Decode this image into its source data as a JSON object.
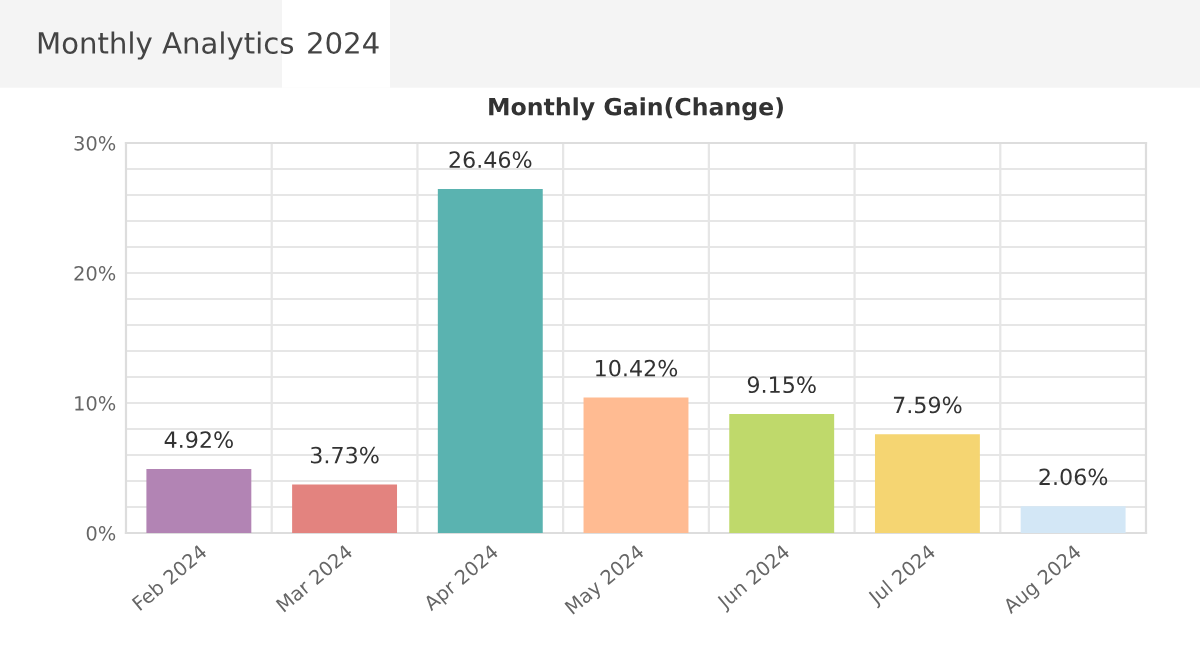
{
  "chart_data": {
    "type": "bar",
    "title": "Monthly Gain(Change)",
    "annotations": [
      "Monthly Analytics",
      "2024"
    ],
    "categories": [
      "Feb 2024",
      "Mar 2024",
      "Apr 2024",
      "May 2024",
      "Jun 2024",
      "Jul 2024",
      "Aug 2024"
    ],
    "values": [
      4.92,
      3.73,
      26.46,
      10.42,
      9.15,
      7.59,
      2.06
    ],
    "colors": [
      "#b284b4",
      "#e3837f",
      "#5ab3b0",
      "#ffbb92",
      "#bfd96b",
      "#f5d572",
      "#d3e7f6"
    ],
    "value_labels": [
      "4.92%",
      "3.73%",
      "26.46%",
      "10.42%",
      "9.15%",
      "7.59%",
      "2.06%"
    ],
    "ylim": [
      0,
      30
    ],
    "yticks": [
      {
        "value": 0,
        "label": "0%"
      },
      {
        "value": 2,
        "label": null
      },
      {
        "value": 4,
        "label": null
      },
      {
        "value": 6,
        "label": null
      },
      {
        "value": 8,
        "label": null
      },
      {
        "value": 10,
        "label": "10%"
      },
      {
        "value": 12,
        "label": null
      },
      {
        "value": 14,
        "label": null
      },
      {
        "value": 16,
        "label": null
      },
      {
        "value": 18,
        "label": null
      },
      {
        "value": 20,
        "label": "20%"
      },
      {
        "value": 22,
        "label": null
      },
      {
        "value": 24,
        "label": null
      },
      {
        "value": 26,
        "label": null
      },
      {
        "value": 28,
        "label": null
      },
      {
        "value": 30,
        "label": "30%"
      }
    ],
    "grid": true,
    "legend": false
  }
}
